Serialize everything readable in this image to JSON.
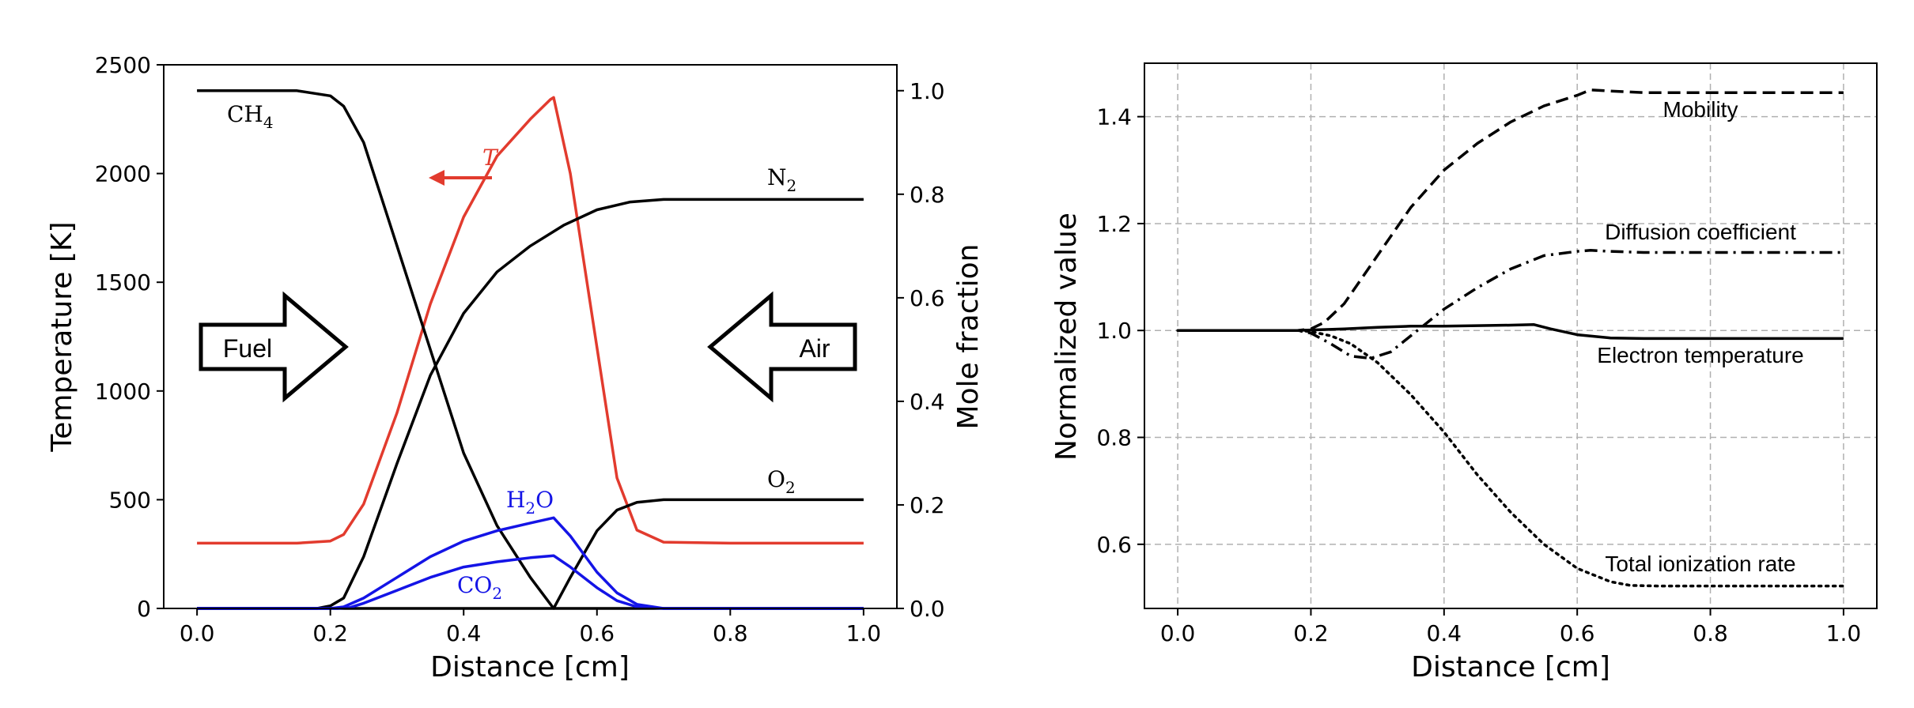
{
  "colors": {
    "black": "#000000",
    "red": "#e23b2e",
    "blue": "#1414e6",
    "grid": "#b0b0b0"
  },
  "chart_data": [
    {
      "type": "line",
      "name": "flame-profile",
      "xlabel": "Distance [cm]",
      "ylabel": "Temperature [K]",
      "ylabel_right": "Mole fraction",
      "xlim": [
        -0.05,
        1.05
      ],
      "ylim": [
        0,
        2500
      ],
      "ylim_right": [
        0,
        1.05
      ],
      "xticks": [
        0.0,
        0.2,
        0.4,
        0.6,
        0.8,
        1.0
      ],
      "xtick_labels": [
        "0.0",
        "0.2",
        "0.4",
        "0.6",
        "0.8",
        "1.0"
      ],
      "yticks": [
        0,
        500,
        1000,
        1500,
        2000,
        2500
      ],
      "ytick_labels": [
        "0",
        "500",
        "1000",
        "1500",
        "2000",
        "2500"
      ],
      "yticks_right": [
        0.0,
        0.2,
        0.4,
        0.6,
        0.8,
        1.0
      ],
      "ytick_right_labels": [
        "0.0",
        "0.2",
        "0.4",
        "0.6",
        "0.8",
        "1.0"
      ],
      "grid": false,
      "series": [
        {
          "name": "T",
          "axis": "left",
          "color": "#e23b2e",
          "x": [
            0.0,
            0.15,
            0.2,
            0.22,
            0.25,
            0.3,
            0.35,
            0.4,
            0.45,
            0.5,
            0.53,
            0.535,
            0.56,
            0.6,
            0.63,
            0.66,
            0.7,
            0.8,
            1.0
          ],
          "y": [
            300,
            300,
            310,
            340,
            480,
            900,
            1400,
            1800,
            2080,
            2250,
            2340,
            2350,
            2000,
            1200,
            600,
            360,
            305,
            300,
            300
          ]
        },
        {
          "name": "CH4",
          "axis": "right",
          "color": "#000000",
          "x": [
            0.0,
            0.15,
            0.2,
            0.22,
            0.25,
            0.3,
            0.35,
            0.4,
            0.45,
            0.5,
            0.535,
            0.6,
            1.0
          ],
          "y": [
            1.0,
            1.0,
            0.99,
            0.97,
            0.9,
            0.7,
            0.5,
            0.3,
            0.16,
            0.06,
            0.0,
            0.0,
            0.0
          ]
        },
        {
          "name": "N2",
          "axis": "right",
          "color": "#000000",
          "x": [
            0.0,
            0.18,
            0.2,
            0.22,
            0.25,
            0.3,
            0.35,
            0.4,
            0.45,
            0.5,
            0.55,
            0.6,
            0.65,
            0.7,
            0.8,
            1.0
          ],
          "y": [
            0.0,
            0.0,
            0.005,
            0.02,
            0.1,
            0.28,
            0.45,
            0.57,
            0.65,
            0.7,
            0.74,
            0.77,
            0.785,
            0.79,
            0.79,
            0.79
          ]
        },
        {
          "name": "O2",
          "axis": "right",
          "color": "#000000",
          "x": [
            0.0,
            0.535,
            0.56,
            0.6,
            0.63,
            0.66,
            0.7,
            0.8,
            1.0
          ],
          "y": [
            0.0,
            0.0,
            0.06,
            0.15,
            0.19,
            0.205,
            0.21,
            0.21,
            0.21
          ]
        },
        {
          "name": "H2O",
          "axis": "right",
          "color": "#1414e6",
          "x": [
            0.0,
            0.2,
            0.22,
            0.25,
            0.3,
            0.35,
            0.4,
            0.45,
            0.5,
            0.535,
            0.56,
            0.6,
            0.63,
            0.66,
            0.7,
            1.0
          ],
          "y": [
            0.0,
            0.0,
            0.003,
            0.02,
            0.06,
            0.1,
            0.13,
            0.15,
            0.165,
            0.175,
            0.14,
            0.07,
            0.03,
            0.008,
            0.0,
            0.0
          ]
        },
        {
          "name": "CO2",
          "axis": "right",
          "color": "#1414e6",
          "x": [
            0.0,
            0.21,
            0.23,
            0.25,
            0.3,
            0.35,
            0.4,
            0.45,
            0.5,
            0.535,
            0.56,
            0.6,
            0.63,
            0.66,
            0.7,
            1.0
          ],
          "y": [
            0.0,
            0.0,
            0.002,
            0.01,
            0.035,
            0.06,
            0.08,
            0.09,
            0.098,
            0.102,
            0.08,
            0.04,
            0.015,
            0.003,
            0.0,
            0.0
          ]
        }
      ],
      "labels": {
        "ch4_main": "CH",
        "ch4_sub": "4",
        "n2_main": "N",
        "n2_sub": "2",
        "o2_main": "O",
        "o2_sub": "2",
        "h2o_a": "H",
        "h2o_sub": "2",
        "h2o_b": "O",
        "co2_main": "CO",
        "co2_sub": "2",
        "t_label": "T"
      },
      "arrows": {
        "fuel": "Fuel",
        "air": "Air"
      }
    },
    {
      "type": "line",
      "name": "normalized-transport",
      "xlabel": "Distance [cm]",
      "ylabel": "Normalized value",
      "xlim": [
        -0.05,
        1.05
      ],
      "ylim": [
        0.48,
        1.5
      ],
      "xticks": [
        0.0,
        0.2,
        0.4,
        0.6,
        0.8,
        1.0
      ],
      "xtick_labels": [
        "0.0",
        "0.2",
        "0.4",
        "0.6",
        "0.8",
        "1.0"
      ],
      "yticks": [
        0.6,
        0.8,
        1.0,
        1.2,
        1.4
      ],
      "ytick_labels": [
        "0.6",
        "0.8",
        "1.0",
        "1.2",
        "1.4"
      ],
      "grid": true,
      "series": [
        {
          "name": "Mobility",
          "style": "dashed",
          "x": [
            0.0,
            0.18,
            0.2,
            0.22,
            0.25,
            0.3,
            0.35,
            0.4,
            0.45,
            0.5,
            0.55,
            0.6,
            0.62,
            0.65,
            0.7,
            0.8,
            1.0
          ],
          "y": [
            1.0,
            1.0,
            1.003,
            1.015,
            1.05,
            1.14,
            1.23,
            1.3,
            1.35,
            1.39,
            1.42,
            1.44,
            1.45,
            1.448,
            1.445,
            1.445,
            1.445
          ]
        },
        {
          "name": "Diffusion coefficient",
          "style": "dashdot",
          "x": [
            0.0,
            0.18,
            0.2,
            0.23,
            0.26,
            0.29,
            0.32,
            0.35,
            0.4,
            0.45,
            0.5,
            0.55,
            0.6,
            0.62,
            0.65,
            0.7,
            0.8,
            1.0
          ],
          "y": [
            1.0,
            1.0,
            0.995,
            0.975,
            0.952,
            0.948,
            0.96,
            0.99,
            1.04,
            1.08,
            1.115,
            1.14,
            1.148,
            1.15,
            1.148,
            1.146,
            1.146,
            1.146
          ]
        },
        {
          "name": "Electron temperature",
          "style": "solid",
          "x": [
            0.0,
            0.18,
            0.2,
            0.25,
            0.3,
            0.35,
            0.4,
            0.45,
            0.5,
            0.535,
            0.56,
            0.6,
            0.65,
            0.7,
            0.8,
            1.0
          ],
          "y": [
            1.0,
            1.0,
            1.001,
            1.003,
            1.006,
            1.008,
            1.008,
            1.009,
            1.01,
            1.011,
            1.003,
            0.992,
            0.986,
            0.985,
            0.985,
            0.985
          ]
        },
        {
          "name": "Total ionization rate",
          "style": "dotted",
          "x": [
            0.0,
            0.18,
            0.2,
            0.23,
            0.26,
            0.3,
            0.35,
            0.4,
            0.45,
            0.5,
            0.55,
            0.6,
            0.65,
            0.68,
            0.72,
            0.8,
            1.0
          ],
          "y": [
            1.0,
            1.0,
            0.998,
            0.99,
            0.975,
            0.94,
            0.88,
            0.81,
            0.73,
            0.66,
            0.6,
            0.555,
            0.53,
            0.523,
            0.522,
            0.522,
            0.522
          ]
        }
      ],
      "labels": {
        "mobility": "Mobility",
        "diffusion": "Diffusion coefficient",
        "electron_temperature": "Electron temperature",
        "ionization": "Total ionization rate"
      }
    }
  ]
}
